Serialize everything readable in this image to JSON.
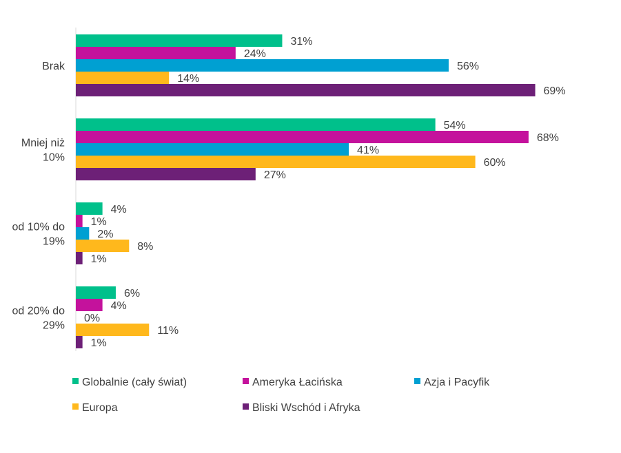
{
  "chart_data": {
    "type": "bar",
    "orientation": "horizontal",
    "categories": [
      "Brak",
      "Mniej niż 10%",
      "od 10% do 19%",
      "od 20% do 29%"
    ],
    "category_lines": [
      [
        "Brak"
      ],
      [
        "Mniej niż",
        "10%"
      ],
      [
        "od 10% do",
        "19%"
      ],
      [
        "od 20% do",
        "29%"
      ]
    ],
    "series": [
      {
        "name": "Globalnie (cały świat)",
        "color": "#00C08B",
        "values": [
          31,
          54,
          4,
          6
        ],
        "labels": [
          "31%",
          "54%",
          "4%",
          "6%"
        ]
      },
      {
        "name": "Ameryka Łacińska",
        "color": "#C4129C",
        "values": [
          24,
          68,
          1,
          4
        ],
        "labels": [
          "24%",
          "68%",
          "1%",
          "4%"
        ]
      },
      {
        "name": "Azja i Pacyfik",
        "color": "#00A0D2",
        "values": [
          56,
          41,
          2,
          0
        ],
        "labels": [
          "56%",
          "41%",
          "2%",
          "0%"
        ]
      },
      {
        "name": "Europa",
        "color": "#FFB81C",
        "values": [
          14,
          60,
          8,
          11
        ],
        "labels": [
          "14%",
          "60%",
          "8%",
          "11%"
        ]
      },
      {
        "name": "Bliski Wschód i Afryka",
        "color": "#6D2077",
        "values": [
          69,
          27,
          1,
          1
        ],
        "labels": [
          "69%",
          "27%",
          "1%",
          "1%"
        ]
      }
    ],
    "legend": "bottom",
    "grid": false,
    "xlim": [
      0,
      100
    ]
  }
}
